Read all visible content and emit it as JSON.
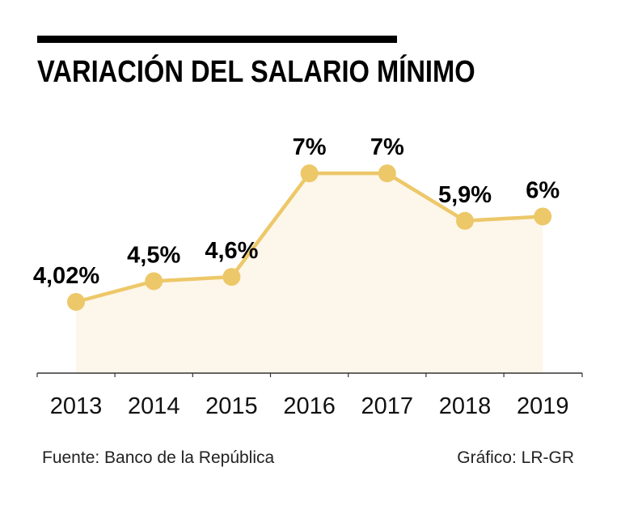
{
  "header": {
    "title": "VARIACIÓN DEL SALARIO MÍNIMO"
  },
  "footer": {
    "source": "Fuente: Banco de la República",
    "credit": "Gráfico: LR-GR"
  },
  "colors": {
    "line": "#EDC869",
    "area": "#FDF6EA",
    "axis": "#333333",
    "text": "#000000"
  },
  "chart_data": {
    "type": "line",
    "title": "VARIACIÓN DEL SALARIO MÍNIMO",
    "x": [
      "2013",
      "2014",
      "2015",
      "2016",
      "2017",
      "2018",
      "2019"
    ],
    "values": [
      4.02,
      4.5,
      4.6,
      7.0,
      7.0,
      5.9,
      6.0
    ],
    "data_labels": [
      "4,02%",
      "4,5%",
      "4,6%",
      "7%",
      "7%",
      "5,9%",
      "6%"
    ],
    "xlabel": "",
    "ylabel": "",
    "grid": false,
    "legend": "none"
  }
}
